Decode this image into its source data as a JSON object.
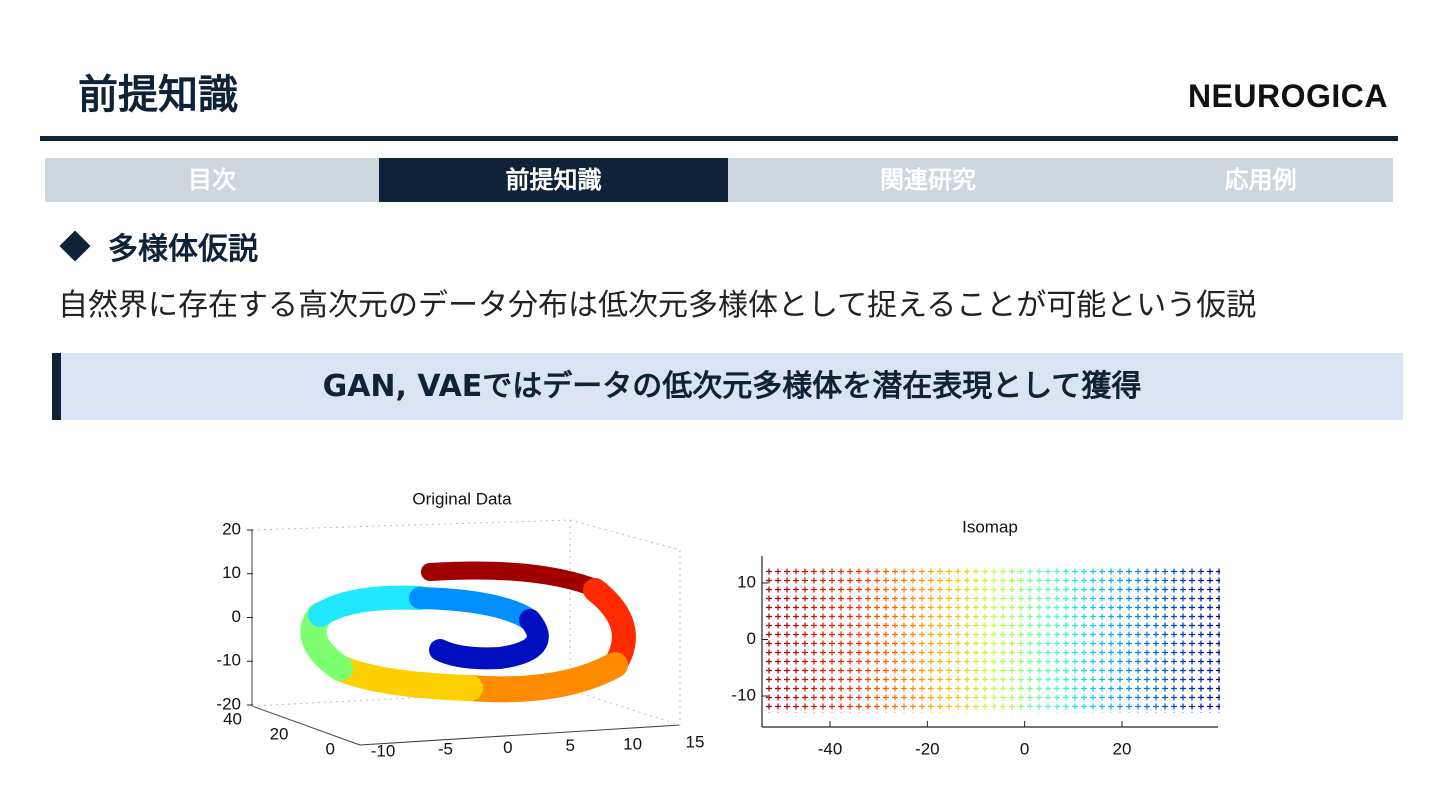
{
  "header": {
    "title": "前提知識",
    "logo": "NEUROGICA"
  },
  "tabs": {
    "items": [
      "目次",
      "前提知識",
      "関連研究",
      "応用例"
    ],
    "active": 1
  },
  "section": {
    "heading": "多様体仮説",
    "body": "自然界に存在する高次元のデータ分布は低次元多様体として捉えることが可能という仮説",
    "callout": "GAN, VAEではデータの低次元多様体を潜在表現として獲得"
  },
  "figures": [
    {
      "title": "Original Data",
      "zticks": [
        20,
        10,
        0,
        -10,
        -20
      ],
      "yticks": [
        40,
        20,
        0
      ],
      "xticks": [
        -10,
        -5,
        0,
        5,
        10,
        15
      ]
    },
    {
      "title": "Isomap",
      "yticks": [
        10,
        0,
        -10
      ],
      "xticks": [
        -40,
        -20,
        0,
        20
      ]
    }
  ]
}
